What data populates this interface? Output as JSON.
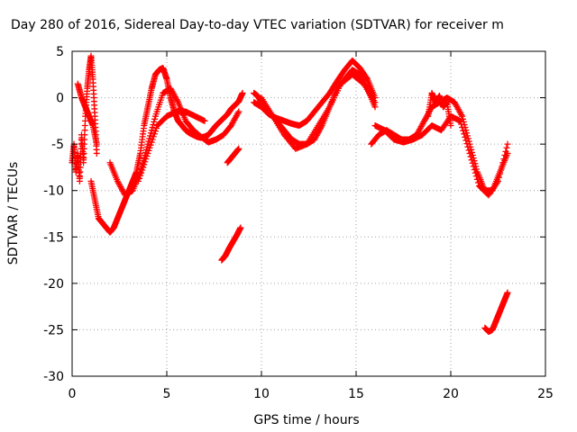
{
  "chart_data": {
    "type": "scatter",
    "title": "Day 280 of 2016, Sidereal Day-to-day VTEC variation (SDTVAR) for receiver m",
    "xlabel": "GPS time / hours",
    "ylabel": "SDTVAR / TECUs",
    "xlim": [
      0,
      25
    ],
    "ylim": [
      -30,
      5
    ],
    "xticks": [
      "0",
      "5",
      "10",
      "15",
      "20",
      "25"
    ],
    "yticks": [
      "5",
      "0",
      "-5",
      "-10",
      "-15",
      "-20",
      "-25",
      "-30"
    ],
    "grid": true,
    "marker": "plus",
    "color": "#ff0000",
    "series": [
      {
        "x": [
          0.0,
          0.1,
          0.2,
          0.3,
          0.4,
          0.5,
          0.6,
          0.7,
          0.8,
          0.9,
          1.0,
          1.1,
          1.2,
          1.3
        ],
        "y": [
          -7,
          -5,
          -8,
          -6,
          -9,
          -4,
          -7,
          -2,
          1,
          3,
          4.5,
          2,
          -2,
          -6
        ]
      },
      {
        "x": [
          0.3,
          0.5,
          0.7,
          0.9,
          1.1,
          1.3
        ],
        "y": [
          1.5,
          0,
          -1,
          -2,
          -3,
          -5
        ]
      },
      {
        "x": [
          1.0,
          1.2,
          1.4,
          1.6,
          1.8,
          2.0,
          2.2,
          2.4,
          2.6,
          2.8,
          3.0,
          3.2,
          3.4,
          3.6,
          3.8,
          4.0,
          4.2,
          4.4,
          4.6,
          4.8,
          5.0,
          5.2,
          5.4,
          5.6,
          5.8,
          6.0,
          6.2,
          6.4,
          6.6,
          6.8,
          7.0,
          7.2,
          7.4,
          7.6,
          7.8,
          8.0,
          8.2,
          8.4,
          8.6,
          8.8,
          9.0
        ],
        "y": [
          -9,
          -11,
          -13,
          -13.5,
          -14,
          -14.5,
          -14,
          -13,
          -12,
          -11,
          -10,
          -9,
          -8,
          -6,
          -3,
          -1,
          1,
          2.5,
          3,
          3.2,
          2,
          0,
          -1.5,
          -2.5,
          -3,
          -3.5,
          -3.8,
          -4,
          -4.2,
          -4.3,
          -4.2,
          -4,
          -3.5,
          -3,
          -2.6,
          -2.2,
          -1.8,
          -1.2,
          -0.8,
          -0.4,
          0.5
        ]
      },
      {
        "x": [
          2.0,
          2.4,
          2.8,
          3.2,
          3.6,
          4.0,
          4.4,
          4.8,
          5.2,
          5.6,
          6.0,
          6.4,
          6.8,
          7.2,
          7.6,
          8.0,
          8.4,
          8.8
        ],
        "y": [
          -7,
          -9,
          -10.5,
          -10,
          -8,
          -5,
          -2,
          0.5,
          1,
          -0.5,
          -2.5,
          -3.5,
          -4.2,
          -4.8,
          -4.5,
          -4,
          -3,
          -1.5
        ]
      },
      {
        "x": [
          3.5,
          4.0,
          4.5,
          5.0,
          5.5,
          6.0,
          6.5,
          7.0
        ],
        "y": [
          -9,
          -6,
          -3,
          -2,
          -1.5,
          -1.5,
          -2,
          -2.5
        ]
      },
      {
        "x": [
          8.2,
          8.4,
          8.6,
          8.8
        ],
        "y": [
          -7,
          -6.5,
          -6,
          -5.5
        ]
      },
      {
        "x": [
          7.9,
          8.1,
          8.3,
          8.5,
          8.7,
          8.9
        ],
        "y": [
          -17.5,
          -17,
          -16.2,
          -15.5,
          -14.8,
          -14
        ]
      },
      {
        "x": [
          9.6,
          9.8,
          10.0,
          10.4,
          10.8,
          11.2,
          11.6,
          12.0,
          12.4,
          12.8,
          13.2,
          13.6,
          14.0,
          14.4,
          14.8,
          15.2,
          15.6,
          16.0
        ],
        "y": [
          0.5,
          0.2,
          -0.5,
          -1.5,
          -2.5,
          -3.5,
          -4.5,
          -5,
          -5,
          -4.5,
          -3,
          -1,
          1,
          2,
          3,
          2.5,
          1,
          -1
        ]
      },
      {
        "x": [
          9.6,
          10.0,
          10.4,
          10.8,
          11.2,
          11.6,
          12.0,
          12.4,
          12.8,
          13.2,
          13.6,
          14.0,
          14.4,
          14.8,
          15.2,
          15.6,
          16.0
        ],
        "y": [
          -0.5,
          -1,
          -1.8,
          -2.2,
          -2.5,
          -2.8,
          -3,
          -2.5,
          -1.5,
          -0.5,
          0.5,
          1.8,
          3,
          4,
          3.2,
          2,
          0
        ]
      },
      {
        "x": [
          10.0,
          10.6,
          11.2,
          11.8,
          12.4,
          13.0,
          13.6,
          14.2,
          14.8,
          15.4,
          16.0
        ],
        "y": [
          0,
          -2,
          -4,
          -5.5,
          -5,
          -3,
          -1,
          1.5,
          2.5,
          1.5,
          -0.5
        ]
      },
      {
        "x": [
          15.8,
          16.2,
          16.6,
          17.0,
          17.4,
          17.8,
          18.2,
          18.6,
          19.0,
          19.4,
          19.8,
          20.2,
          20.6,
          21.0,
          21.4,
          21.8,
          22.2,
          22.6,
          23.0
        ],
        "y": [
          -5,
          -4,
          -3.5,
          -4,
          -4.5,
          -4.5,
          -4,
          -2.5,
          -1,
          -0.5,
          0,
          -0.5,
          -2,
          -5,
          -8,
          -10,
          -10,
          -8,
          -6
        ]
      },
      {
        "x": [
          16.0,
          16.5,
          17.0,
          17.5,
          18.0,
          18.5,
          19.0,
          19.5,
          20.0,
          20.5,
          21.0,
          21.5,
          22.0,
          22.5,
          23.0
        ],
        "y": [
          -3,
          -3.5,
          -4.5,
          -4.8,
          -4.5,
          -4,
          -3,
          -3.5,
          -2,
          -2.5,
          -6,
          -9.5,
          -10.5,
          -9,
          -5
        ]
      },
      {
        "x": [
          18.8,
          19.0,
          19.2,
          19.4,
          19.6,
          19.8,
          20.0
        ],
        "y": [
          -2,
          0.5,
          -0.5,
          0.2,
          -1,
          -0.5,
          -3
        ]
      },
      {
        "x": [
          21.8,
          22.0,
          22.2,
          22.4,
          22.6,
          22.8,
          23.0
        ],
        "y": [
          -24.8,
          -25.2,
          -25,
          -24,
          -23,
          -22,
          -21
        ]
      }
    ]
  }
}
